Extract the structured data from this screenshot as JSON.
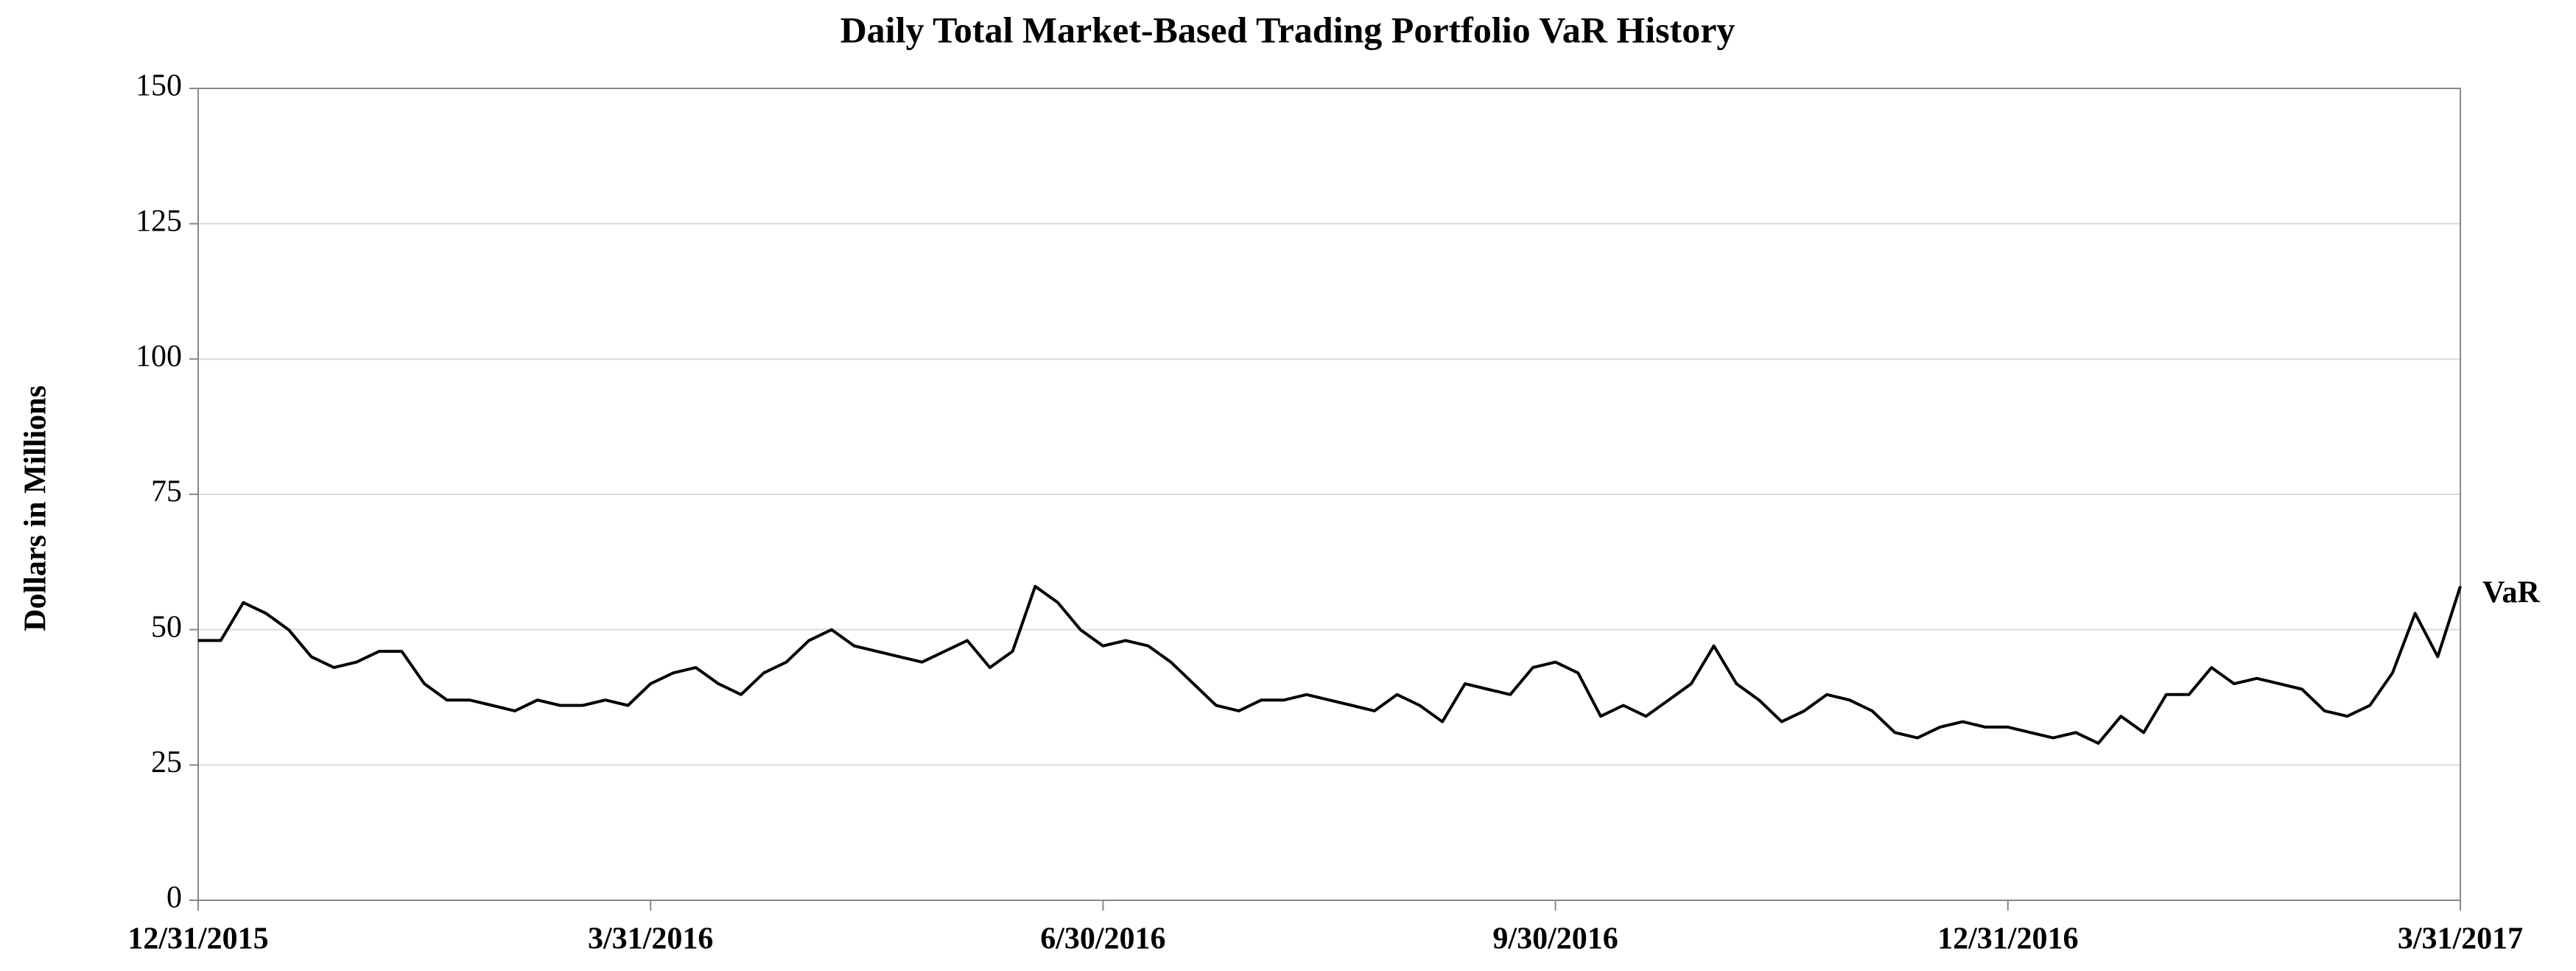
{
  "chart_data": {
    "type": "line",
    "title": "Daily Total Market-Based Trading Portfolio VaR History",
    "y_label": "Dollars in Millions",
    "categories": [
      "12/31/2015",
      null,
      null,
      null,
      null,
      null,
      null,
      null,
      null,
      null,
      null,
      null,
      null,
      null,
      null,
      null,
      null,
      null,
      null,
      null,
      "3/31/2016",
      null,
      null,
      null,
      null,
      null,
      null,
      null,
      null,
      null,
      null,
      null,
      null,
      null,
      null,
      null,
      null,
      null,
      null,
      null,
      "6/30/2016",
      null,
      null,
      null,
      null,
      null,
      null,
      null,
      null,
      null,
      null,
      null,
      null,
      null,
      null,
      null,
      null,
      null,
      null,
      null,
      "9/30/2016",
      null,
      null,
      null,
      null,
      null,
      null,
      null,
      null,
      null,
      null,
      null,
      null,
      null,
      null,
      null,
      null,
      null,
      null,
      null,
      "12/31/2016",
      null,
      null,
      null,
      null,
      null,
      null,
      null,
      null,
      null,
      null,
      null,
      null,
      null,
      null,
      null,
      null,
      null,
      null,
      null,
      "3/31/2017"
    ],
    "series": [
      {
        "name": "VaR",
        "color": "#000000",
        "values": [
          48,
          48,
          55,
          53,
          50,
          45,
          43,
          44,
          46,
          46,
          40,
          37,
          37,
          36,
          35,
          37,
          36,
          36,
          37,
          36,
          40,
          42,
          43,
          40,
          38,
          42,
          44,
          48,
          50,
          47,
          46,
          45,
          44,
          46,
          48,
          43,
          46,
          58,
          55,
          50,
          47,
          48,
          47,
          44,
          40,
          36,
          35,
          37,
          37,
          38,
          37,
          36,
          35,
          38,
          36,
          33,
          40,
          39,
          38,
          43,
          44,
          42,
          34,
          36,
          34,
          37,
          40,
          47,
          40,
          37,
          33,
          35,
          38,
          37,
          35,
          31,
          30,
          32,
          33,
          32,
          32,
          31,
          30,
          31,
          29,
          34,
          31,
          38,
          38,
          43,
          40,
          41,
          40,
          39,
          35,
          34,
          36,
          42,
          53,
          45,
          58
        ]
      }
    ],
    "ylim": [
      0,
      150
    ],
    "yticks": [
      0,
      25,
      50,
      75,
      100,
      125,
      150
    ],
    "grid": true
  }
}
